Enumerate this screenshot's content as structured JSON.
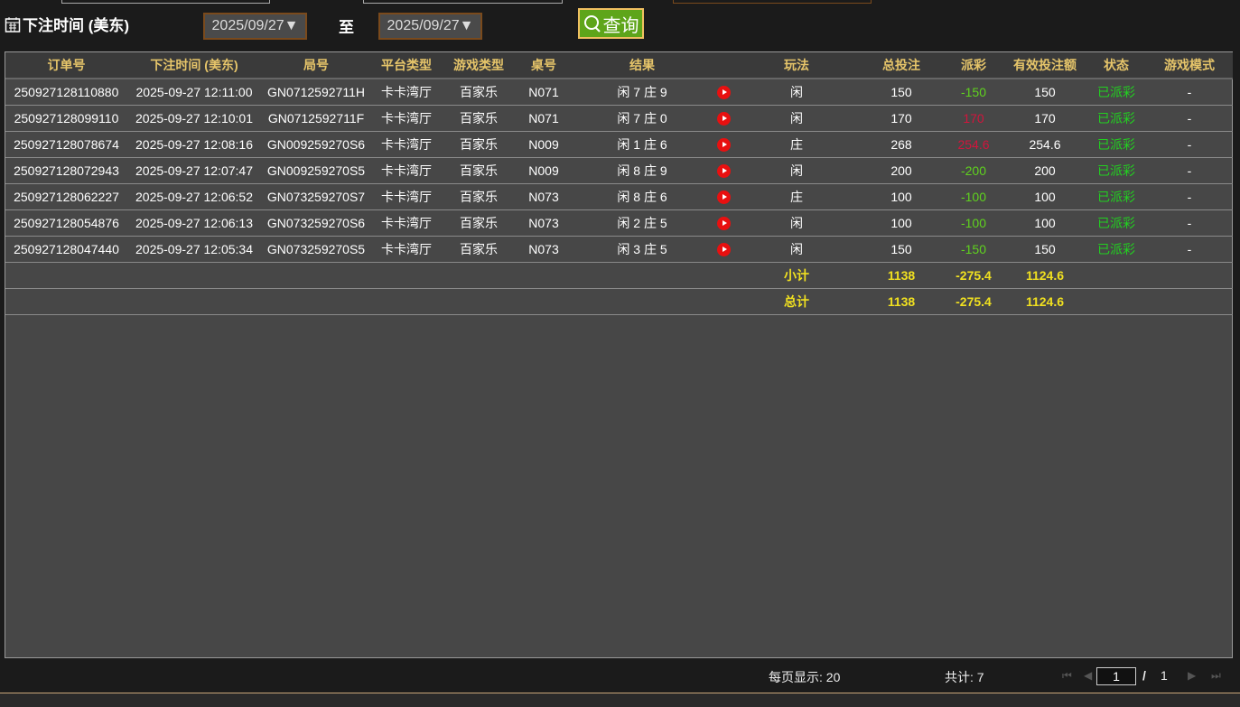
{
  "filter": {
    "label": "下注时间 (美东)",
    "from": "2025/09/27▼",
    "to_label": "至",
    "to": "2025/09/27▼",
    "query": "查询"
  },
  "columns": [
    "订单号",
    "下注时间 (美东)",
    "局号",
    "平台类型",
    "游戏类型",
    "桌号",
    "结果",
    "",
    "玩法",
    "总投注",
    "派彩",
    "有效投注额",
    "状态",
    "游戏模式"
  ],
  "rows": [
    [
      "250927128110880",
      "2025-09-27 12:11:00",
      "GN0712592711H",
      "卡卡湾厅",
      "百家乐",
      "N071",
      "闲 7 庄 9",
      "闲",
      "150",
      "-150",
      "150",
      "已派彩",
      "-"
    ],
    [
      "250927128099110",
      "2025-09-27 12:10:01",
      "GN0712592711F",
      "卡卡湾厅",
      "百家乐",
      "N071",
      "闲 7 庄 0",
      "闲",
      "170",
      "170",
      "170",
      "已派彩",
      "-"
    ],
    [
      "250927128078674",
      "2025-09-27 12:08:16",
      "GN009259270S6",
      "卡卡湾厅",
      "百家乐",
      "N009",
      "闲 1 庄 6",
      "庄",
      "268",
      "254.6",
      "254.6",
      "已派彩",
      "-"
    ],
    [
      "250927128072943",
      "2025-09-27 12:07:47",
      "GN009259270S5",
      "卡卡湾厅",
      "百家乐",
      "N009",
      "闲 8 庄 9",
      "闲",
      "200",
      "-200",
      "200",
      "已派彩",
      "-"
    ],
    [
      "250927128062227",
      "2025-09-27 12:06:52",
      "GN073259270S7",
      "卡卡湾厅",
      "百家乐",
      "N073",
      "闲 8 庄 6",
      "庄",
      "100",
      "-100",
      "100",
      "已派彩",
      "-"
    ],
    [
      "250927128054876",
      "2025-09-27 12:06:13",
      "GN073259270S6",
      "卡卡湾厅",
      "百家乐",
      "N073",
      "闲 2 庄 5",
      "闲",
      "100",
      "-100",
      "100",
      "已派彩",
      "-"
    ],
    [
      "250927128047440",
      "2025-09-27 12:05:34",
      "GN073259270S5",
      "卡卡湾厅",
      "百家乐",
      "N073",
      "闲 3 庄 5",
      "闲",
      "150",
      "-150",
      "150",
      "已派彩",
      "-"
    ]
  ],
  "subtotal": {
    "label": "小计",
    "bet": "1138",
    "payout": "-275.4",
    "valid": "1124.6"
  },
  "total": {
    "label": "总计",
    "bet": "1138",
    "payout": "-275.4",
    "valid": "1124.6"
  },
  "footer": {
    "per_page": "每页显示: 20",
    "count": "共计: 7",
    "page": "1",
    "sep": "/",
    "pages": "1"
  },
  "colors": {
    "header": "#e6c56a",
    "negative": "#5fd21e",
    "positive": "#d2143c",
    "status": "#22d020",
    "total": "#f0e020"
  }
}
